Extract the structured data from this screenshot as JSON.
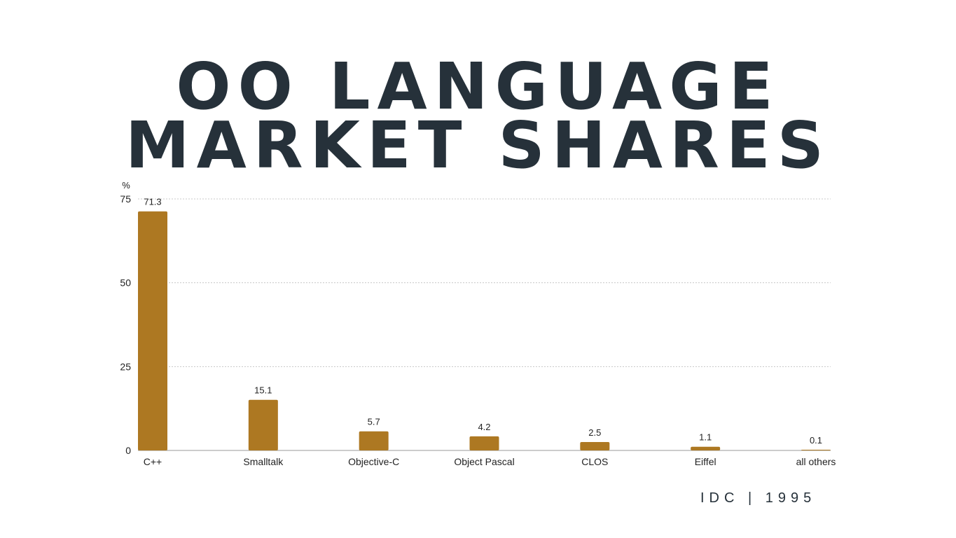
{
  "title_line1": "OO LANGUAGE",
  "title_line2": "MARKET SHARES",
  "source": "IDC | 1995",
  "colors": {
    "bar": "#ad7822",
    "title": "#26313a",
    "grid": "#c8c8c8",
    "text": "#222222"
  },
  "chart_data": {
    "type": "bar",
    "title": "OO LANGUAGE MARKET SHARES",
    "xlabel": "",
    "ylabel": "%",
    "categories": [
      "C++",
      "Smalltalk",
      "Objective-C",
      "Object Pascal",
      "CLOS",
      "Eiffel",
      "all others"
    ],
    "values": [
      71.3,
      15.1,
      5.7,
      4.2,
      2.5,
      1.1,
      0.1
    ],
    "data_labels": [
      "71.3",
      "15.1",
      "5.7",
      "4.2",
      "2.5",
      "1.1",
      "0.1"
    ],
    "ylim": [
      0,
      75
    ],
    "yticks": [
      0,
      25,
      50,
      75
    ],
    "grid": true,
    "legend": "none"
  }
}
